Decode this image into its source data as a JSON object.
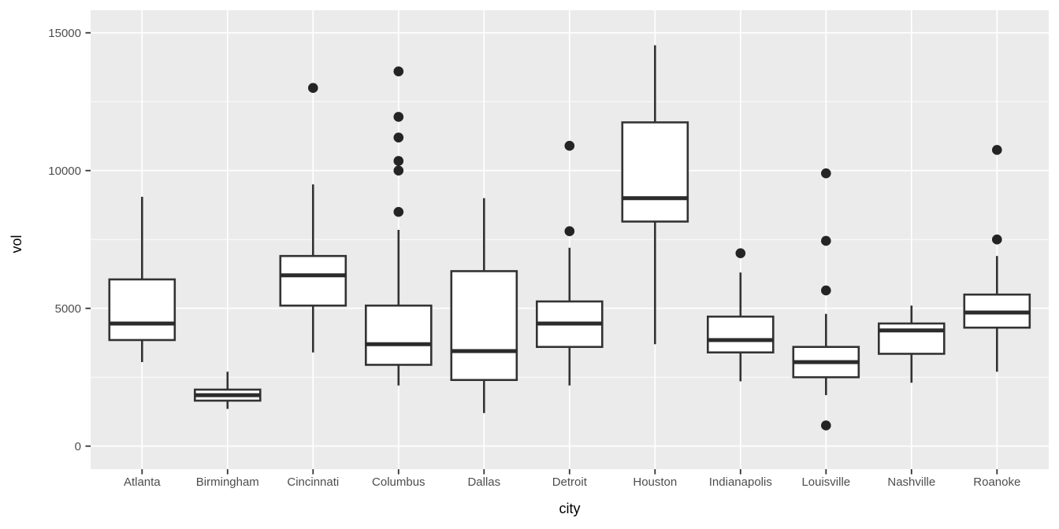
{
  "figure": {
    "kind": "boxplot-figure",
    "x_axis_title": "city",
    "y_axis_title": "vol"
  },
  "chart_data": {
    "type": "boxplot",
    "title": "",
    "xlabel": "city",
    "ylabel": "vol",
    "categories": [
      "Atlanta",
      "Birmingham",
      "Cincinnati",
      "Columbus",
      "Dallas",
      "Detroit",
      "Houston",
      "Indianapolis",
      "Louisville",
      "Nashville",
      "Roanoke"
    ],
    "y_axis": {
      "tick_values": [
        0,
        5000,
        10000,
        15000
      ],
      "tick_labels": [
        "0",
        "5000",
        "10000",
        "15000"
      ],
      "minor_tick_values": [
        2500,
        7500,
        12500
      ],
      "shown_range": [
        0,
        15000
      ],
      "grid": true
    },
    "series": [
      {
        "city": "Atlanta",
        "whisker_low": 3050,
        "q1": 3850,
        "median": 4450,
        "q3": 6050,
        "whisker_high": 9050,
        "outliers": []
      },
      {
        "city": "Birmingham",
        "whisker_low": 1350,
        "q1": 1650,
        "median": 1850,
        "q3": 2050,
        "whisker_high": 2700,
        "outliers": []
      },
      {
        "city": "Cincinnati",
        "whisker_low": 3400,
        "q1": 5100,
        "median": 6200,
        "q3": 6900,
        "whisker_high": 9500,
        "outliers": [
          13000
        ]
      },
      {
        "city": "Columbus",
        "whisker_low": 2200,
        "q1": 2950,
        "median": 3700,
        "q3": 5100,
        "whisker_high": 7850,
        "outliers": [
          13600,
          11950,
          11200,
          10350,
          10000,
          8500
        ]
      },
      {
        "city": "Dallas",
        "whisker_low": 1200,
        "q1": 2400,
        "median": 3450,
        "q3": 6350,
        "whisker_high": 9000,
        "outliers": []
      },
      {
        "city": "Detroit",
        "whisker_low": 2200,
        "q1": 3600,
        "median": 4450,
        "q3": 5250,
        "whisker_high": 7200,
        "outliers": [
          10900,
          7800
        ]
      },
      {
        "city": "Houston",
        "whisker_low": 3700,
        "q1": 8150,
        "median": 9000,
        "q3": 11750,
        "whisker_high": 14550,
        "outliers": []
      },
      {
        "city": "Indianapolis",
        "whisker_low": 2350,
        "q1": 3400,
        "median": 3850,
        "q3": 4700,
        "whisker_high": 6300,
        "outliers": [
          7000
        ]
      },
      {
        "city": "Louisville",
        "whisker_low": 1850,
        "q1": 2500,
        "median": 3050,
        "q3": 3600,
        "whisker_high": 4800,
        "outliers": [
          9900,
          7450,
          5650,
          750
        ]
      },
      {
        "city": "Nashville",
        "whisker_low": 2300,
        "q1": 3350,
        "median": 4200,
        "q3": 4450,
        "whisker_high": 5100,
        "outliers": []
      },
      {
        "city": "Roanoke",
        "whisker_low": 2700,
        "q1": 4300,
        "median": 4850,
        "q3": 5500,
        "whisker_high": 6900,
        "outliers": [
          10750,
          7500
        ]
      }
    ],
    "legend": null,
    "colors": {
      "panel_background": "#EBEBEB",
      "grid_line": "#FFFFFF",
      "box_stroke": "#333333",
      "box_fill": "#FFFFFF",
      "median_stroke": "#2B2B2B",
      "outlier_fill": "#242424",
      "tick_mark": "#333333",
      "tick_label": "#4D4D4D",
      "axis_title": "#000000"
    }
  }
}
